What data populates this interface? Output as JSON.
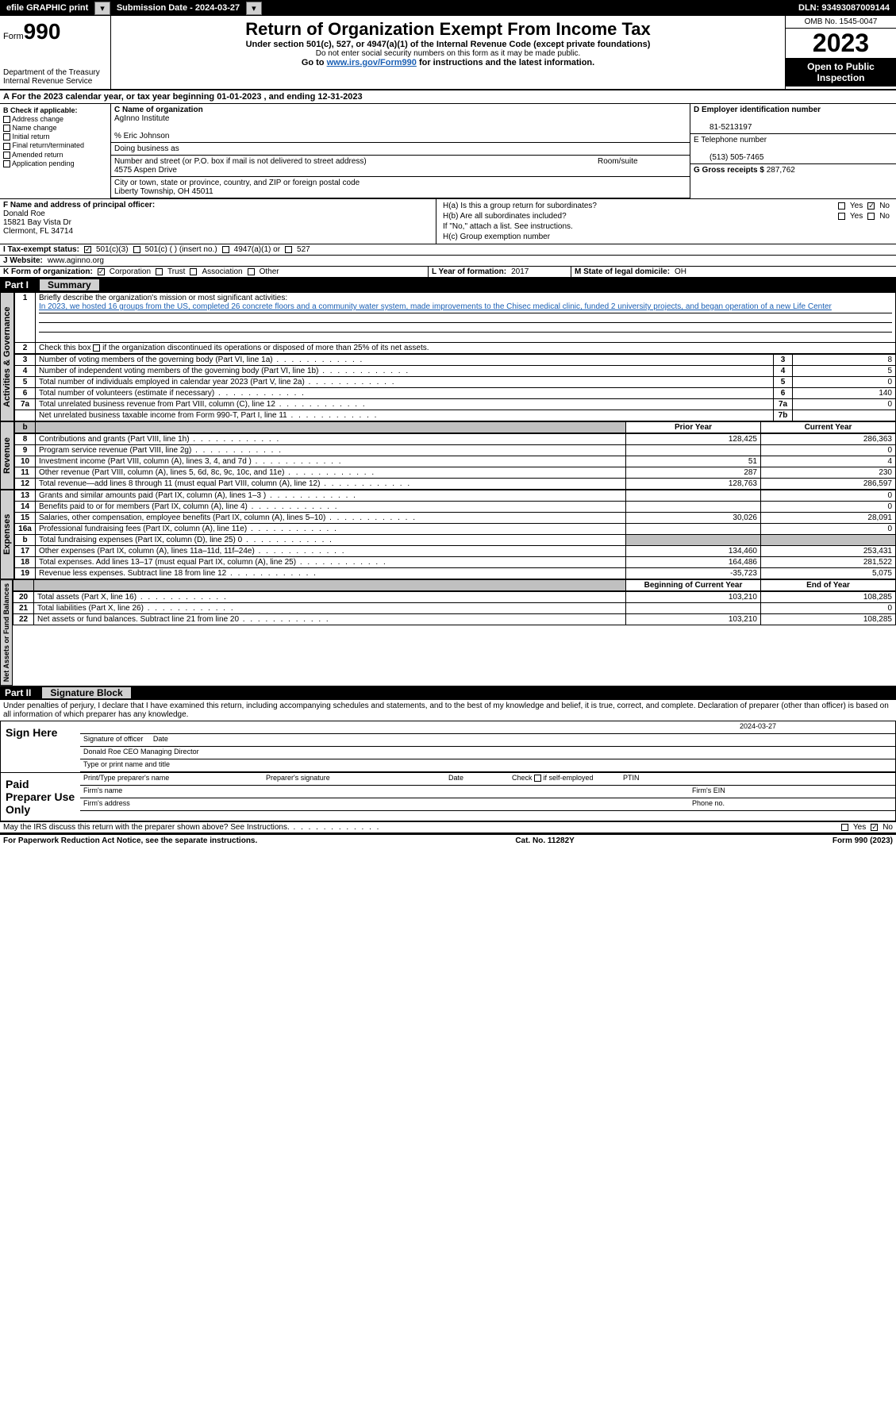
{
  "topbar": {
    "efile": "efile GRAPHIC print",
    "submission": "Submission Date - 2024-03-27",
    "dln": "DLN: 93493087009144"
  },
  "header": {
    "form_label": "Form",
    "form_num": "990",
    "dept": "Department of the Treasury",
    "irs": "Internal Revenue Service",
    "title": "Return of Organization Exempt From Income Tax",
    "sub1": "Under section 501(c), 527, or 4947(a)(1) of the Internal Revenue Code (except private foundations)",
    "sub2": "Do not enter social security numbers on this form as it may be made public.",
    "sub3_pre": "Go to ",
    "sub3_link": "www.irs.gov/Form990",
    "sub3_post": " for instructions and the latest information.",
    "omb": "OMB No. 1545-0047",
    "year": "2023",
    "open": "Open to Public Inspection"
  },
  "sectA": "A For the 2023 calendar year, or tax year beginning 01-01-2023   , and ending 12-31-2023",
  "colB": {
    "hdr": "B Check if applicable:",
    "items": [
      "Address change",
      "Name change",
      "Initial return",
      "Final return/terminated",
      "Amended return",
      "Application pending"
    ]
  },
  "colC": {
    "name_lbl": "C Name of organization",
    "name": "AgInno Institute",
    "care": "% Eric Johnson",
    "dba_lbl": "Doing business as",
    "street_lbl": "Number and street (or P.O. box if mail is not delivered to street address)",
    "room_lbl": "Room/suite",
    "street": "4575 Aspen Drive",
    "city_lbl": "City or town, state or province, country, and ZIP or foreign postal code",
    "city": "Liberty Township, OH  45011"
  },
  "colD": {
    "ein_lbl": "D Employer identification number",
    "ein": "81-5213197",
    "tel_lbl": "E Telephone number",
    "tel": "(513) 505-7465",
    "gross_lbl": "G Gross receipts $",
    "gross": "287,762"
  },
  "rowF": {
    "lbl": "F  Name and address of principal officer:",
    "name": "Donald Roe",
    "addr1": "15821 Bay Vista Dr",
    "addr2": "Clermont, FL  34714"
  },
  "rowH": {
    "ha": "H(a)  Is this a group return for subordinates?",
    "hb": "H(b)  Are all subordinates included?",
    "hb_note": "If \"No,\" attach a list. See instructions.",
    "hc": "H(c)  Group exemption number",
    "yes": "Yes",
    "no": "No"
  },
  "rowI": {
    "lbl": "I   Tax-exempt status:",
    "o1": "501(c)(3)",
    "o2": "501(c) (  ) (insert no.)",
    "o3": "4947(a)(1) or",
    "o4": "527"
  },
  "rowJ": {
    "lbl": "J   Website:",
    "val": "www.aginno.org"
  },
  "rowK": {
    "lbl": "K Form of organization:",
    "o1": "Corporation",
    "o2": "Trust",
    "o3": "Association",
    "o4": "Other"
  },
  "rowL": {
    "lbl": "L Year of formation:",
    "val": "2017"
  },
  "rowM": {
    "lbl": "M State of legal domicile:",
    "val": "OH"
  },
  "part1": {
    "pn": "Part I",
    "pt": "Summary"
  },
  "summary": {
    "q1": "Briefly describe the organization's mission or most significant activities:",
    "q1_ans": "In 2023, we hosted 16 groups from the US, completed 26 concrete floors and a community water system, made improvements to the Chisec medical clinic, funded 2 university projects, and began operation of a new Life Center",
    "q2": "Check this box      if the organization discontinued its operations or disposed of more than 25% of its net assets.",
    "rows_ag": [
      {
        "n": "3",
        "t": "Number of voting members of the governing body (Part VI, line 1a)",
        "box": "3",
        "v": "8"
      },
      {
        "n": "4",
        "t": "Number of independent voting members of the governing body (Part VI, line 1b)",
        "box": "4",
        "v": "5"
      },
      {
        "n": "5",
        "t": "Total number of individuals employed in calendar year 2023 (Part V, line 2a)",
        "box": "5",
        "v": "0"
      },
      {
        "n": "6",
        "t": "Total number of volunteers (estimate if necessary)",
        "box": "6",
        "v": "140"
      },
      {
        "n": "7a",
        "t": "Total unrelated business revenue from Part VIII, column (C), line 12",
        "box": "7a",
        "v": "0"
      },
      {
        "n": "",
        "t": "Net unrelated business taxable income from Form 990-T, Part I, line 11",
        "box": "7b",
        "v": ""
      }
    ],
    "hdr_prior": "Prior Year",
    "hdr_curr": "Current Year",
    "rev": [
      {
        "n": "8",
        "t": "Contributions and grants (Part VIII, line 1h)",
        "p": "128,425",
        "c": "286,363"
      },
      {
        "n": "9",
        "t": "Program service revenue (Part VIII, line 2g)",
        "p": "",
        "c": "0"
      },
      {
        "n": "10",
        "t": "Investment income (Part VIII, column (A), lines 3, 4, and 7d )",
        "p": "51",
        "c": "4"
      },
      {
        "n": "11",
        "t": "Other revenue (Part VIII, column (A), lines 5, 6d, 8c, 9c, 10c, and 11e)",
        "p": "287",
        "c": "230"
      },
      {
        "n": "12",
        "t": "Total revenue—add lines 8 through 11 (must equal Part VIII, column (A), line 12)",
        "p": "128,763",
        "c": "286,597"
      }
    ],
    "exp": [
      {
        "n": "13",
        "t": "Grants and similar amounts paid (Part IX, column (A), lines 1–3 )",
        "p": "",
        "c": "0"
      },
      {
        "n": "14",
        "t": "Benefits paid to or for members (Part IX, column (A), line 4)",
        "p": "",
        "c": "0"
      },
      {
        "n": "15",
        "t": "Salaries, other compensation, employee benefits (Part IX, column (A), lines 5–10)",
        "p": "30,026",
        "c": "28,091"
      },
      {
        "n": "16a",
        "t": "Professional fundraising fees (Part IX, column (A), line 11e)",
        "p": "",
        "c": "0"
      },
      {
        "n": "b",
        "t": "Total fundraising expenses (Part IX, column (D), line 25) 0",
        "p": "GRAY",
        "c": "GRAY"
      },
      {
        "n": "17",
        "t": "Other expenses (Part IX, column (A), lines 11a–11d, 11f–24e)",
        "p": "134,460",
        "c": "253,431"
      },
      {
        "n": "18",
        "t": "Total expenses. Add lines 13–17 (must equal Part IX, column (A), line 25)",
        "p": "164,486",
        "c": "281,522"
      },
      {
        "n": "19",
        "t": "Revenue less expenses. Subtract line 18 from line 12",
        "p": "-35,723",
        "c": "5,075"
      }
    ],
    "hdr_beg": "Beginning of Current Year",
    "hdr_end": "End of Year",
    "na": [
      {
        "n": "20",
        "t": "Total assets (Part X, line 16)",
        "p": "103,210",
        "c": "108,285"
      },
      {
        "n": "21",
        "t": "Total liabilities (Part X, line 26)",
        "p": "",
        "c": "0"
      },
      {
        "n": "22",
        "t": "Net assets or fund balances. Subtract line 21 from line 20",
        "p": "103,210",
        "c": "108,285"
      }
    ],
    "side_ag": "Activities & Governance",
    "side_rev": "Revenue",
    "side_exp": "Expenses",
    "side_na": "Net Assets or Fund Balances"
  },
  "part2": {
    "pn": "Part II",
    "pt": "Signature Block"
  },
  "sig": {
    "decl": "Under penalties of perjury, I declare that I have examined this return, including accompanying schedules and statements, and to the best of my knowledge and belief, it is true, correct, and complete. Declaration of preparer (other than officer) is based on all information of which preparer has any knowledge.",
    "sign_here": "Sign Here",
    "date": "2024-03-27",
    "sig_officer": "Signature of officer",
    "officer": "Donald Roe CEO Managing Director",
    "type_name": "Type or print name and title",
    "paid": "Paid Preparer Use Only",
    "p_name": "Print/Type preparer's name",
    "p_sig": "Preparer's signature",
    "p_date": "Date",
    "p_check": "Check        if self-employed",
    "p_ptin": "PTIN",
    "firm_name": "Firm's name",
    "firm_ein": "Firm's EIN",
    "firm_addr": "Firm's address",
    "phone": "Phone no.",
    "may": "May the IRS discuss this return with the preparer shown above? See Instructions.",
    "yes": "Yes",
    "no": "No"
  },
  "footer": {
    "l": "For Paperwork Reduction Act Notice, see the separate instructions.",
    "m": "Cat. No. 11282Y",
    "r": "Form 990 (2023)"
  }
}
